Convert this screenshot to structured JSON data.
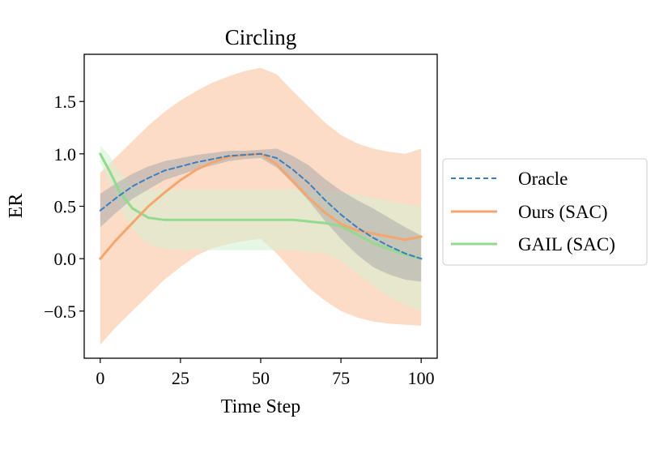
{
  "chart_data": {
    "type": "line",
    "title": "Circling",
    "xlabel": "Time Step",
    "ylabel": "ER",
    "xlim": [
      -5,
      105
    ],
    "ylim": [
      -0.95,
      1.95
    ],
    "xticks": [
      0,
      25,
      50,
      75,
      100
    ],
    "xtick_labels": [
      "0",
      "25",
      "50",
      "75",
      "100"
    ],
    "yticks": [
      -0.5,
      0.0,
      0.5,
      1.0,
      1.5
    ],
    "ytick_labels": [
      "−0.5",
      "0.0",
      "0.5",
      "1.0",
      "1.5"
    ],
    "grid": false,
    "legend_position": "outside-right",
    "series": [
      {
        "name": "Oracle",
        "style": "dashed",
        "color": "#3a7fbf",
        "band_color": "#a9a9a9",
        "x": [
          0,
          5,
          10,
          15,
          20,
          25,
          30,
          35,
          40,
          45,
          50,
          55,
          60,
          65,
          70,
          75,
          80,
          85,
          90,
          95,
          100
        ],
        "y": [
          0.46,
          0.58,
          0.69,
          0.77,
          0.84,
          0.88,
          0.92,
          0.95,
          0.98,
          0.99,
          1.0,
          0.96,
          0.85,
          0.72,
          0.56,
          0.42,
          0.3,
          0.2,
          0.12,
          0.05,
          0.0
        ],
        "lower": [
          0.3,
          0.44,
          0.57,
          0.66,
          0.75,
          0.8,
          0.85,
          0.89,
          0.93,
          0.95,
          0.96,
          0.87,
          0.72,
          0.55,
          0.36,
          0.19,
          0.04,
          -0.08,
          -0.15,
          -0.2,
          -0.22
        ],
        "upper": [
          0.62,
          0.72,
          0.81,
          0.88,
          0.93,
          0.96,
          0.99,
          1.01,
          1.03,
          1.03,
          1.04,
          1.05,
          0.98,
          0.89,
          0.76,
          0.65,
          0.56,
          0.48,
          0.39,
          0.3,
          0.22
        ]
      },
      {
        "name": "Ours (SAC)",
        "style": "solid",
        "color": "#f5a66e",
        "band_color": "#fdd6bd",
        "x": [
          0,
          5,
          10,
          15,
          20,
          25,
          30,
          35,
          40,
          45,
          50,
          55,
          60,
          65,
          70,
          75,
          80,
          85,
          90,
          95,
          100
        ],
        "y": [
          0.0,
          0.18,
          0.34,
          0.5,
          0.63,
          0.75,
          0.85,
          0.92,
          0.97,
          0.99,
          1.0,
          0.9,
          0.74,
          0.58,
          0.44,
          0.33,
          0.27,
          0.24,
          0.21,
          0.18,
          0.21
        ],
        "lower": [
          -0.82,
          -0.65,
          -0.5,
          -0.35,
          -0.2,
          -0.08,
          0.03,
          0.1,
          0.14,
          0.17,
          0.19,
          0.05,
          -0.12,
          -0.28,
          -0.4,
          -0.5,
          -0.56,
          -0.6,
          -0.62,
          -0.63,
          -0.64
        ],
        "upper": [
          0.82,
          0.97,
          1.12,
          1.27,
          1.4,
          1.51,
          1.6,
          1.68,
          1.74,
          1.79,
          1.82,
          1.76,
          1.6,
          1.45,
          1.3,
          1.18,
          1.1,
          1.05,
          1.02,
          1.0,
          1.05
        ]
      },
      {
        "name": "GAIL (SAC)",
        "style": "solid",
        "color": "#93d98f",
        "band_color": "#d4f0d2",
        "x": [
          0,
          3,
          6,
          10,
          15,
          20,
          25,
          30,
          40,
          50,
          60,
          70,
          75,
          80,
          85,
          90,
          95,
          100
        ],
        "y": [
          1.0,
          0.83,
          0.64,
          0.48,
          0.39,
          0.37,
          0.37,
          0.37,
          0.37,
          0.37,
          0.37,
          0.34,
          0.31,
          0.23,
          0.15,
          0.09,
          0.04,
          0.0
        ],
        "lower": [
          0.92,
          0.72,
          0.5,
          0.28,
          0.14,
          0.09,
          0.08,
          0.08,
          0.08,
          0.08,
          0.08,
          0.05,
          -0.02,
          -0.14,
          -0.26,
          -0.36,
          -0.44,
          -0.5
        ],
        "upper": [
          1.08,
          0.98,
          0.82,
          0.7,
          0.66,
          0.66,
          0.66,
          0.66,
          0.66,
          0.66,
          0.66,
          0.64,
          0.63,
          0.61,
          0.58,
          0.55,
          0.52,
          0.5
        ]
      }
    ]
  }
}
